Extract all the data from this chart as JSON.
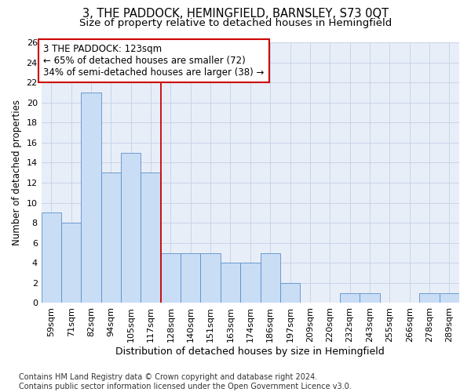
{
  "title": "3, THE PADDOCK, HEMINGFIELD, BARNSLEY, S73 0QT",
  "subtitle": "Size of property relative to detached houses in Hemingfield",
  "xlabel": "Distribution of detached houses by size in Hemingfield",
  "ylabel": "Number of detached properties",
  "categories": [
    "59sqm",
    "71sqm",
    "82sqm",
    "94sqm",
    "105sqm",
    "117sqm",
    "128sqm",
    "140sqm",
    "151sqm",
    "163sqm",
    "174sqm",
    "186sqm",
    "197sqm",
    "209sqm",
    "220sqm",
    "232sqm",
    "243sqm",
    "255sqm",
    "266sqm",
    "278sqm",
    "289sqm"
  ],
  "values": [
    9,
    8,
    21,
    13,
    15,
    13,
    5,
    5,
    5,
    4,
    4,
    5,
    2,
    0,
    0,
    1,
    1,
    0,
    0,
    1,
    1
  ],
  "bar_color": "#c9ddf5",
  "bar_edge_color": "#5b8fc9",
  "grid_color": "#c8d4e8",
  "background_color": "#e8eef8",
  "annotation_text": "3 THE PADDOCK: 123sqm\n← 65% of detached houses are smaller (72)\n34% of semi-detached houses are larger (38) →",
  "annotation_box_color": "#ffffff",
  "annotation_border_color": "#cc0000",
  "vline_x_index": 5.5,
  "vline_color": "#cc0000",
  "ylim": [
    0,
    26
  ],
  "yticks": [
    0,
    2,
    4,
    6,
    8,
    10,
    12,
    14,
    16,
    18,
    20,
    22,
    24,
    26
  ],
  "footnote": "Contains HM Land Registry data © Crown copyright and database right 2024.\nContains public sector information licensed under the Open Government Licence v3.0.",
  "title_fontsize": 10.5,
  "subtitle_fontsize": 9.5,
  "xlabel_fontsize": 9,
  "ylabel_fontsize": 8.5,
  "tick_fontsize": 8,
  "annotation_fontsize": 8.5,
  "footnote_fontsize": 7
}
